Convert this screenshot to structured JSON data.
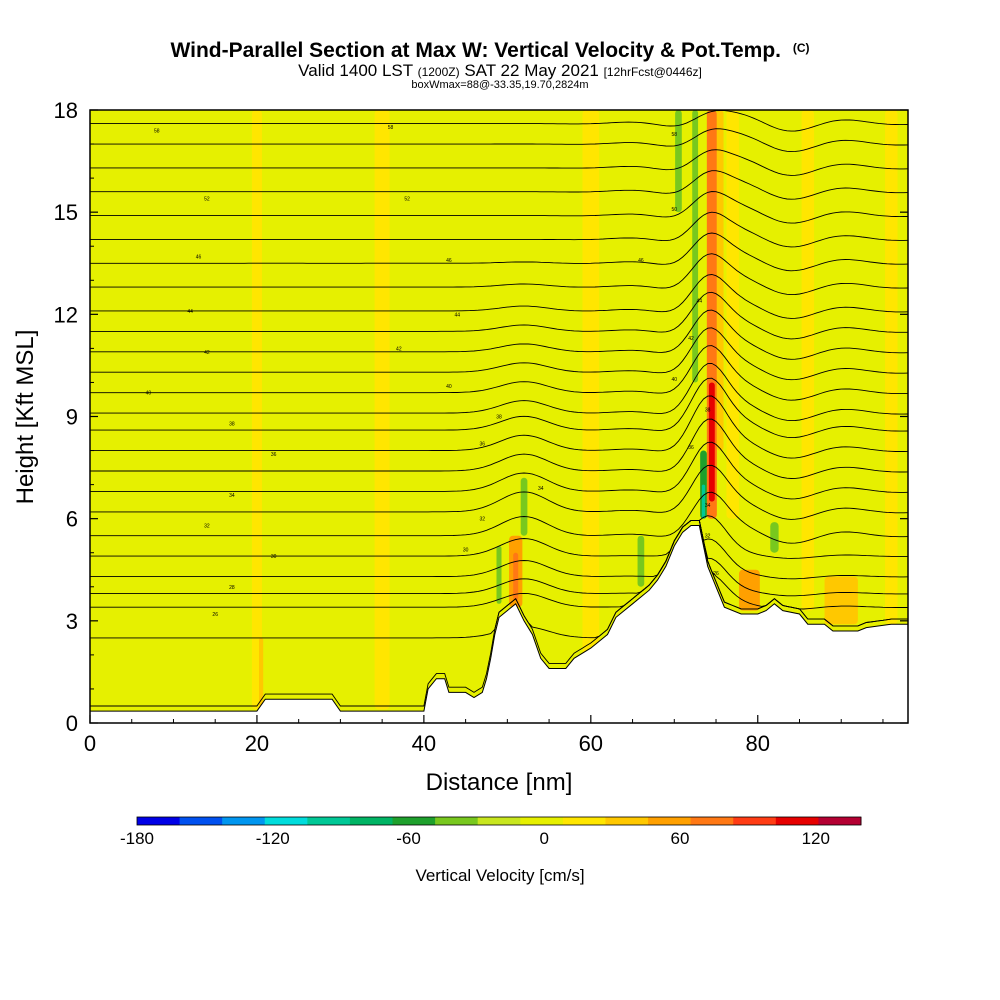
{
  "chart_data": {
    "type": "heatmap",
    "title": "Wind-Parallel Section at Max W: Vertical Velocity & Pot.Temp.",
    "title_units": "(C)",
    "subtitle_main_a": "Valid 1400 LST",
    "subtitle_small_a": "(1200Z)",
    "subtitle_main_b": "SAT 22 May 2021",
    "subtitle_small_b": "[12hrFcst@0446z]",
    "subtitle2": "boxWmax=88@-33.35,19.70,2824m",
    "xlabel": "Distance [nm]",
    "ylabel": "Height [Kft MSL]",
    "xlim": [
      0,
      98
    ],
    "ylim": [
      0,
      18
    ],
    "xticks": [
      0,
      20,
      40,
      60,
      80
    ],
    "yticks": [
      0,
      3,
      6,
      9,
      12,
      15,
      18
    ],
    "colorbar": {
      "label": "Vertical Velocity [cm/s]",
      "ticks": [
        -180,
        -120,
        -60,
        0,
        60,
        120
      ],
      "bins": [
        -180,
        140
      ],
      "colors": [
        "#0000e6",
        "#0050f0",
        "#0096f0",
        "#00dcdc",
        "#00c896",
        "#00b464",
        "#1ea02c",
        "#78c81e",
        "#c8e61e",
        "#e6f000",
        "#ffe600",
        "#ffc800",
        "#ffa000",
        "#ff7814",
        "#ff3c14",
        "#e60000",
        "#b40032"
      ]
    },
    "background_color": "#e6f000",
    "terrain": [
      [
        0,
        0.35
      ],
      [
        4,
        0.35
      ],
      [
        20,
        0.35
      ],
      [
        21,
        0.7
      ],
      [
        29,
        0.7
      ],
      [
        30,
        0.35
      ],
      [
        40,
        0.35
      ],
      [
        40.5,
        1.0
      ],
      [
        41.5,
        1.3
      ],
      [
        42.5,
        1.3
      ],
      [
        43,
        0.9
      ],
      [
        45,
        0.9
      ],
      [
        46,
        0.75
      ],
      [
        47,
        0.9
      ],
      [
        47.5,
        1.3
      ],
      [
        48,
        1.9
      ],
      [
        48.5,
        2.6
      ],
      [
        49,
        3.1
      ],
      [
        50,
        3.3
      ],
      [
        51,
        3.5
      ],
      [
        52,
        3.0
      ],
      [
        53,
        2.6
      ],
      [
        54,
        1.9
      ],
      [
        55,
        1.6
      ],
      [
        57,
        1.6
      ],
      [
        58,
        1.9
      ],
      [
        60,
        2.2
      ],
      [
        62,
        2.6
      ],
      [
        63,
        3.1
      ],
      [
        64,
        3.3
      ],
      [
        65,
        3.5
      ],
      [
        66,
        3.7
      ],
      [
        67,
        3.9
      ],
      [
        68,
        4.2
      ],
      [
        69,
        4.6
      ],
      [
        70,
        5.2
      ],
      [
        71,
        5.6
      ],
      [
        72,
        5.8
      ],
      [
        73,
        5.8
      ],
      [
        74,
        4.6
      ],
      [
        75,
        4.0
      ],
      [
        76,
        3.4
      ],
      [
        78,
        3.2
      ],
      [
        80,
        3.2
      ],
      [
        81,
        3.3
      ],
      [
        82,
        3.5
      ],
      [
        83,
        3.3
      ],
      [
        85,
        3.2
      ],
      [
        86,
        2.9
      ],
      [
        88,
        2.9
      ],
      [
        89,
        2.7
      ],
      [
        91,
        2.7
      ],
      [
        92,
        2.7
      ],
      [
        93,
        2.8
      ],
      [
        96,
        2.9
      ],
      [
        98,
        2.9
      ]
    ],
    "isentropes_base_heights_kft": [
      0.5,
      2.5,
      3.4,
      3.8,
      4.3,
      4.9,
      5.5,
      6.2,
      6.8,
      7.4,
      8.0,
      8.6,
      9.1,
      9.7,
      10.3,
      10.9,
      11.5,
      12.1,
      12.8,
      13.5,
      14.2,
      14.9,
      15.6,
      16.3,
      17.0,
      17.6
    ],
    "contour_labels": [
      {
        "x": 8,
        "y": 17.4,
        "text": "58"
      },
      {
        "x": 36,
        "y": 17.5,
        "text": "58"
      },
      {
        "x": 70,
        "y": 17.3,
        "text": "58"
      },
      {
        "x": 14,
        "y": 15.4,
        "text": "52"
      },
      {
        "x": 38,
        "y": 15.4,
        "text": "52"
      },
      {
        "x": 70,
        "y": 15.1,
        "text": "50"
      },
      {
        "x": 13,
        "y": 13.7,
        "text": "46"
      },
      {
        "x": 43,
        "y": 13.6,
        "text": "46"
      },
      {
        "x": 66,
        "y": 13.6,
        "text": "46"
      },
      {
        "x": 12,
        "y": 12.1,
        "text": "44"
      },
      {
        "x": 44,
        "y": 12.0,
        "text": "44"
      },
      {
        "x": 73,
        "y": 12.4,
        "text": "44"
      },
      {
        "x": 14,
        "y": 10.9,
        "text": "42"
      },
      {
        "x": 37,
        "y": 11.0,
        "text": "42"
      },
      {
        "x": 72,
        "y": 11.3,
        "text": "42"
      },
      {
        "x": 7,
        "y": 9.7,
        "text": "40"
      },
      {
        "x": 43,
        "y": 9.9,
        "text": "40"
      },
      {
        "x": 70,
        "y": 10.1,
        "text": "40"
      },
      {
        "x": 17,
        "y": 8.8,
        "text": "38"
      },
      {
        "x": 49,
        "y": 9.0,
        "text": "38"
      },
      {
        "x": 74,
        "y": 9.2,
        "text": "38"
      },
      {
        "x": 22,
        "y": 7.9,
        "text": "36"
      },
      {
        "x": 47,
        "y": 8.2,
        "text": "36"
      },
      {
        "x": 72,
        "y": 8.1,
        "text": "36"
      },
      {
        "x": 17,
        "y": 6.7,
        "text": "34"
      },
      {
        "x": 54,
        "y": 6.9,
        "text": "34"
      },
      {
        "x": 74,
        "y": 6.4,
        "text": "34"
      },
      {
        "x": 14,
        "y": 5.8,
        "text": "32"
      },
      {
        "x": 47,
        "y": 6.0,
        "text": "32"
      },
      {
        "x": 74,
        "y": 5.5,
        "text": "32"
      },
      {
        "x": 22,
        "y": 4.9,
        "text": "30"
      },
      {
        "x": 45,
        "y": 5.1,
        "text": "30"
      },
      {
        "x": 17,
        "y": 4.0,
        "text": "28"
      },
      {
        "x": 15,
        "y": 3.2,
        "text": "26"
      },
      {
        "x": 75,
        "y": 4.4,
        "text": "26"
      }
    ],
    "vv_features": [
      {
        "x": 74.5,
        "y0": 6.0,
        "y1": 18,
        "w": 1.2,
        "color": "#ff7814"
      },
      {
        "x": 74.5,
        "y0": 6.5,
        "y1": 10,
        "w": 0.7,
        "color": "#e60000"
      },
      {
        "x": 73.5,
        "y0": 6.0,
        "y1": 8.0,
        "w": 0.8,
        "color": "#1ea02c"
      },
      {
        "x": 73.5,
        "y0": 6.0,
        "y1": 7.0,
        "w": 0.4,
        "color": "#00c896"
      },
      {
        "x": 75.5,
        "y0": 8,
        "y1": 18,
        "w": 0.8,
        "color": "#ffc800"
      },
      {
        "x": 72.5,
        "y0": 10,
        "y1": 18,
        "w": 0.7,
        "color": "#78c81e"
      },
      {
        "x": 70.5,
        "y0": 15,
        "y1": 18,
        "w": 0.8,
        "color": "#78c81e"
      },
      {
        "x": 77,
        "y0": 6,
        "y1": 18,
        "w": 1.5,
        "color": "#ffe600"
      },
      {
        "x": 51,
        "y0": 3.4,
        "y1": 5.5,
        "w": 1.6,
        "color": "#ffa000"
      },
      {
        "x": 51,
        "y0": 3.6,
        "y1": 5.0,
        "w": 0.6,
        "color": "#ff7814"
      },
      {
        "x": 49,
        "y0": 3.5,
        "y1": 5.2,
        "w": 0.6,
        "color": "#78c81e"
      },
      {
        "x": 52,
        "y0": 5.5,
        "y1": 7.2,
        "w": 0.8,
        "color": "#78c81e"
      },
      {
        "x": 66,
        "y0": 4.0,
        "y1": 5.5,
        "w": 0.8,
        "color": "#78c81e"
      },
      {
        "x": 82,
        "y0": 5.0,
        "y1": 5.9,
        "w": 1.0,
        "color": "#78c81e"
      },
      {
        "x": 79,
        "y0": 3.3,
        "y1": 4.5,
        "w": 2.5,
        "color": "#ffa000"
      },
      {
        "x": 90,
        "y0": 2.9,
        "y1": 4.3,
        "w": 4.0,
        "color": "#ffc800"
      },
      {
        "x": 20,
        "y0": 0.4,
        "y1": 18,
        "w": 1.2,
        "color": "#ffe600"
      },
      {
        "x": 35,
        "y0": 0.4,
        "y1": 18,
        "w": 1.8,
        "color": "#ffe600"
      },
      {
        "x": 60,
        "y0": 2.0,
        "y1": 18,
        "w": 2.0,
        "color": "#ffe600"
      },
      {
        "x": 86,
        "y0": 3.3,
        "y1": 18,
        "w": 1.5,
        "color": "#ffe600"
      },
      {
        "x": 96,
        "y0": 2.9,
        "y1": 18,
        "w": 1.5,
        "color": "#ffe600"
      },
      {
        "x": 20.5,
        "y0": 0.5,
        "y1": 2.5,
        "w": 0.5,
        "color": "#ffc800"
      }
    ]
  }
}
